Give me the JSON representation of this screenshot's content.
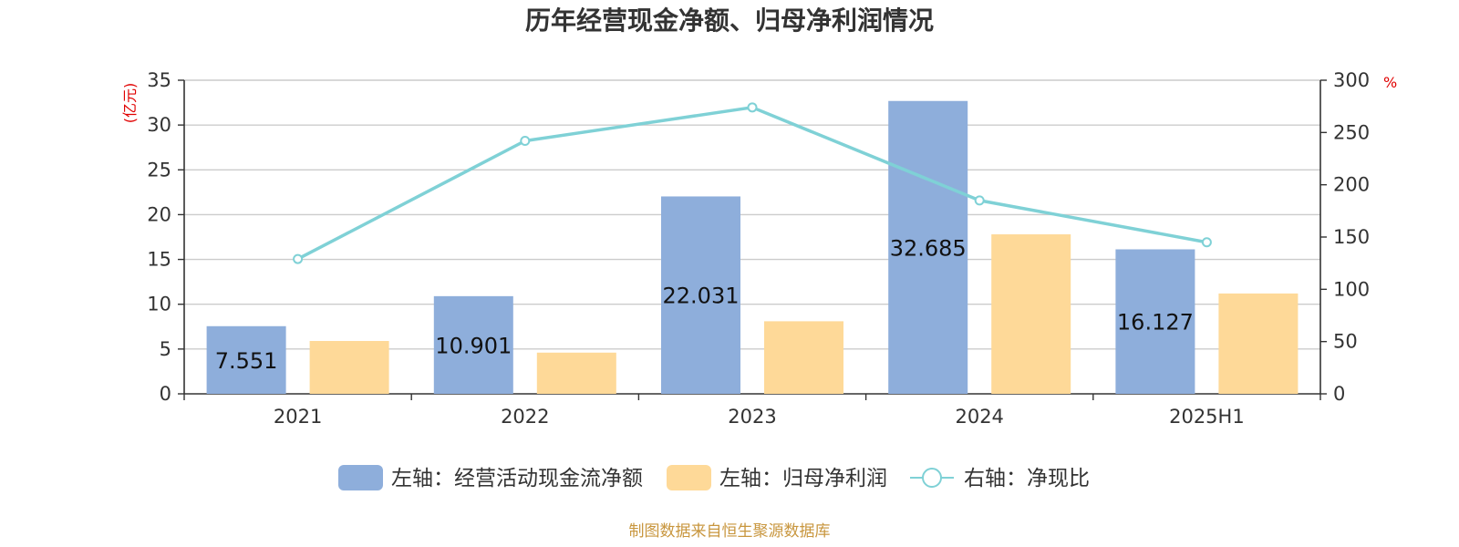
{
  "chart_data": {
    "type": "bar",
    "title": "历年经营现金净额、归母净利润情况",
    "categories": [
      "2021",
      "2022",
      "2023",
      "2024",
      "2025H1"
    ],
    "left_axis": {
      "unit": "(亿元)",
      "ylim": [
        0,
        35
      ],
      "ticks": [
        0,
        5,
        10,
        15,
        20,
        25,
        30,
        35
      ]
    },
    "right_axis": {
      "unit": "%",
      "ylim": [
        0,
        300
      ],
      "ticks": [
        0,
        50,
        100,
        150,
        200,
        250,
        300
      ]
    },
    "grid": true,
    "legend_position": "bottom-center",
    "series": [
      {
        "name": "左轴：经营活动现金流净额",
        "type": "bar",
        "axis": "left",
        "color": "#8eaedb",
        "values": [
          7.551,
          10.901,
          22.031,
          32.685,
          16.127
        ],
        "data_labels": [
          "7.551",
          "10.901",
          "22.031",
          "32.685",
          "16.127"
        ]
      },
      {
        "name": "左轴：归母净利润",
        "type": "bar",
        "axis": "left",
        "color": "#fed998",
        "values": [
          5.9,
          4.6,
          8.1,
          17.8,
          11.2
        ]
      },
      {
        "name": "右轴：净现比",
        "type": "line",
        "axis": "right",
        "color": "#7fd1d6",
        "values": [
          129,
          242,
          274,
          185,
          145
        ]
      }
    ]
  },
  "source_note": "制图数据来自恒生聚源数据库"
}
